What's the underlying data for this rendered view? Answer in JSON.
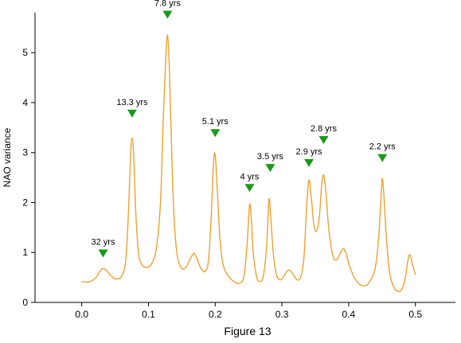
{
  "chart_data": {
    "type": "line",
    "title": "",
    "caption": "Figure 13",
    "xlabel": "",
    "ylabel": "NAO variance",
    "xlim": [
      -0.07,
      0.56
    ],
    "ylim": [
      0,
      5.8
    ],
    "x_ticks": [
      0.0,
      0.1,
      0.2,
      0.3,
      0.4,
      0.5
    ],
    "x_tick_labels": [
      "0.0",
      "0.1",
      "0.2",
      "0.3",
      "0.4",
      "0.5"
    ],
    "y_ticks": [
      0,
      1,
      2,
      3,
      4,
      5
    ],
    "y_tick_labels": [
      "0",
      "1",
      "2",
      "3",
      "4",
      "5"
    ],
    "grid": false,
    "series": [
      {
        "color": "#f0a030",
        "points": [
          [
            0.0,
            0.42
          ],
          [
            0.01,
            0.41
          ],
          [
            0.02,
            0.48
          ],
          [
            0.027,
            0.62
          ],
          [
            0.032,
            0.68
          ],
          [
            0.037,
            0.64
          ],
          [
            0.045,
            0.52
          ],
          [
            0.052,
            0.47
          ],
          [
            0.06,
            0.53
          ],
          [
            0.066,
            0.85
          ],
          [
            0.07,
            1.8
          ],
          [
            0.073,
            2.9
          ],
          [
            0.0755,
            3.3
          ],
          [
            0.078,
            2.9
          ],
          [
            0.081,
            1.8
          ],
          [
            0.085,
            1.0
          ],
          [
            0.09,
            0.76
          ],
          [
            0.097,
            0.7
          ],
          [
            0.105,
            0.78
          ],
          [
            0.112,
            1.1
          ],
          [
            0.118,
            2.0
          ],
          [
            0.122,
            3.6
          ],
          [
            0.126,
            4.9
          ],
          [
            0.1285,
            5.35
          ],
          [
            0.131,
            4.8
          ],
          [
            0.134,
            3.4
          ],
          [
            0.138,
            1.8
          ],
          [
            0.143,
            0.95
          ],
          [
            0.15,
            0.68
          ],
          [
            0.157,
            0.72
          ],
          [
            0.163,
            0.88
          ],
          [
            0.168,
            0.98
          ],
          [
            0.172,
            0.9
          ],
          [
            0.178,
            0.7
          ],
          [
            0.185,
            0.62
          ],
          [
            0.19,
            0.85
          ],
          [
            0.194,
            1.7
          ],
          [
            0.1975,
            2.8
          ],
          [
            0.2,
            2.95
          ],
          [
            0.203,
            2.3
          ],
          [
            0.207,
            1.3
          ],
          [
            0.212,
            0.75
          ],
          [
            0.22,
            0.52
          ],
          [
            0.228,
            0.42
          ],
          [
            0.236,
            0.38
          ],
          [
            0.243,
            0.52
          ],
          [
            0.248,
            1.2
          ],
          [
            0.2515,
            1.95
          ],
          [
            0.254,
            1.7
          ],
          [
            0.257,
            1.0
          ],
          [
            0.262,
            0.52
          ],
          [
            0.267,
            0.42
          ],
          [
            0.272,
            0.52
          ],
          [
            0.277,
            1.1
          ],
          [
            0.2805,
            2.05
          ],
          [
            0.283,
            1.75
          ],
          [
            0.287,
            1.0
          ],
          [
            0.292,
            0.55
          ],
          [
            0.298,
            0.45
          ],
          [
            0.304,
            0.55
          ],
          [
            0.31,
            0.65
          ],
          [
            0.316,
            0.58
          ],
          [
            0.322,
            0.46
          ],
          [
            0.328,
            0.5
          ],
          [
            0.333,
            0.9
          ],
          [
            0.337,
            1.9
          ],
          [
            0.3405,
            2.45
          ],
          [
            0.344,
            2.1
          ],
          [
            0.348,
            1.55
          ],
          [
            0.352,
            1.43
          ],
          [
            0.356,
            1.7
          ],
          [
            0.3595,
            2.35
          ],
          [
            0.3625,
            2.55
          ],
          [
            0.366,
            2.2
          ],
          [
            0.37,
            1.5
          ],
          [
            0.376,
            0.95
          ],
          [
            0.382,
            0.85
          ],
          [
            0.388,
            1.0
          ],
          [
            0.392,
            1.08
          ],
          [
            0.396,
            0.98
          ],
          [
            0.402,
            0.7
          ],
          [
            0.41,
            0.46
          ],
          [
            0.418,
            0.35
          ],
          [
            0.426,
            0.34
          ],
          [
            0.433,
            0.45
          ],
          [
            0.44,
            0.7
          ],
          [
            0.445,
            1.3
          ],
          [
            0.449,
            2.2
          ],
          [
            0.4505,
            2.48
          ],
          [
            0.453,
            2.1
          ],
          [
            0.457,
            1.2
          ],
          [
            0.462,
            0.55
          ],
          [
            0.468,
            0.3
          ],
          [
            0.474,
            0.22
          ],
          [
            0.48,
            0.27
          ],
          [
            0.485,
            0.5
          ],
          [
            0.489,
            0.86
          ],
          [
            0.492,
            0.95
          ],
          [
            0.495,
            0.8
          ],
          [
            0.5,
            0.55
          ]
        ]
      }
    ],
    "annotations": [
      {
        "label": "32 yrs",
        "x": 0.032,
        "y": 0.98
      },
      {
        "label": "13.3 yrs",
        "x": 0.0755,
        "y": 3.78
      },
      {
        "label": "7.8 yrs",
        "x": 0.1285,
        "y": 5.76
      },
      {
        "label": "5.1 yrs",
        "x": 0.2,
        "y": 3.39
      },
      {
        "label": "4 yrs",
        "x": 0.2515,
        "y": 2.29
      },
      {
        "label": "3.5 yrs",
        "x": 0.2825,
        "y": 2.69
      },
      {
        "label": "2.9 yrs",
        "x": 0.3405,
        "y": 2.79
      },
      {
        "label": "2.8 yrs",
        "x": 0.3625,
        "y": 3.25
      },
      {
        "label": "2.2 yrs",
        "x": 0.4505,
        "y": 2.89
      }
    ],
    "marker_color": "#1a9a1a"
  }
}
